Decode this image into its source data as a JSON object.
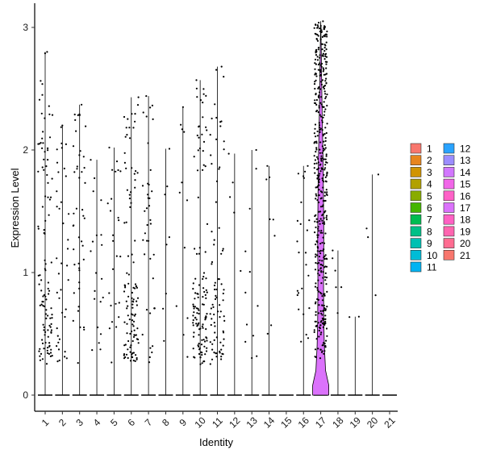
{
  "chart_data": {
    "type": "violin",
    "xlabel": "Identity",
    "ylabel": "Expression Level",
    "ylim": [
      -0.15,
      3.15
    ],
    "yticks": [
      0,
      1,
      2,
      3
    ],
    "categories": [
      "1",
      "2",
      "3",
      "4",
      "5",
      "6",
      "7",
      "8",
      "9",
      "10",
      "11",
      "12",
      "13",
      "14",
      "15",
      "16",
      "17",
      "18",
      "19",
      "20",
      "21"
    ],
    "colors": [
      "#F8766D",
      "#E7851E",
      "#D09400",
      "#B2A100",
      "#89AC00",
      "#45B500",
      "#00BC51",
      "#00C087",
      "#00C0B2",
      "#00BCD6",
      "#00B3F2",
      "#29A3FF",
      "#9C8DFF",
      "#D277FF",
      "#F166E8",
      "#FF61C7",
      "#DB72FB",
      "#FF61C3",
      "#FF65B0",
      "#FF6C91",
      "#F8766D"
    ],
    "series": [
      {
        "category": "1",
        "max": 2.8,
        "n_pos": 110,
        "spread": "high"
      },
      {
        "category": "2",
        "max": 2.2,
        "n_pos": 40,
        "spread": "mid"
      },
      {
        "category": "3",
        "max": 2.37,
        "n_pos": 45,
        "spread": "mid"
      },
      {
        "category": "4",
        "max": 1.92,
        "n_pos": 20,
        "spread": "low"
      },
      {
        "category": "5",
        "max": 2.02,
        "n_pos": 25,
        "spread": "low"
      },
      {
        "category": "6",
        "max": 2.43,
        "n_pos": 110,
        "spread": "high"
      },
      {
        "category": "7",
        "max": 2.44,
        "n_pos": 40,
        "spread": "mid"
      },
      {
        "category": "8",
        "max": 2.01,
        "n_pos": 8,
        "spread": "low"
      },
      {
        "category": "9",
        "max": 2.35,
        "n_pos": 12,
        "spread": "low"
      },
      {
        "category": "10",
        "max": 2.57,
        "n_pos": 120,
        "spread": "high"
      },
      {
        "category": "11",
        "max": 2.68,
        "n_pos": 80,
        "spread": "high"
      },
      {
        "category": "12",
        "max": 1.97,
        "n_pos": 5,
        "spread": "low"
      },
      {
        "category": "13",
        "max": 2.0,
        "n_pos": 12,
        "spread": "low"
      },
      {
        "category": "14",
        "max": 1.87,
        "n_pos": 8,
        "spread": "low"
      },
      {
        "category": "15",
        "max": 0.0,
        "n_pos": 0,
        "spread": "low"
      },
      {
        "category": "16",
        "max": 1.87,
        "n_pos": 25,
        "spread": "mid"
      },
      {
        "category": "17",
        "max": 3.05,
        "n_pos": 450,
        "spread": "violin"
      },
      {
        "category": "18",
        "max": 1.18,
        "n_pos": 6,
        "spread": "low"
      },
      {
        "category": "19",
        "max": 0.64,
        "n_pos": 2,
        "spread": "low"
      },
      {
        "category": "20",
        "max": 1.8,
        "n_pos": 4,
        "spread": "low"
      },
      {
        "category": "21",
        "max": 0.0,
        "n_pos": 0,
        "spread": "low"
      }
    ],
    "legend": {
      "placement": "right",
      "columns": 2,
      "items": [
        "1",
        "2",
        "3",
        "4",
        "5",
        "6",
        "7",
        "8",
        "9",
        "10",
        "11",
        "12",
        "13",
        "14",
        "15",
        "16",
        "17",
        "18",
        "19",
        "20",
        "21"
      ]
    }
  }
}
